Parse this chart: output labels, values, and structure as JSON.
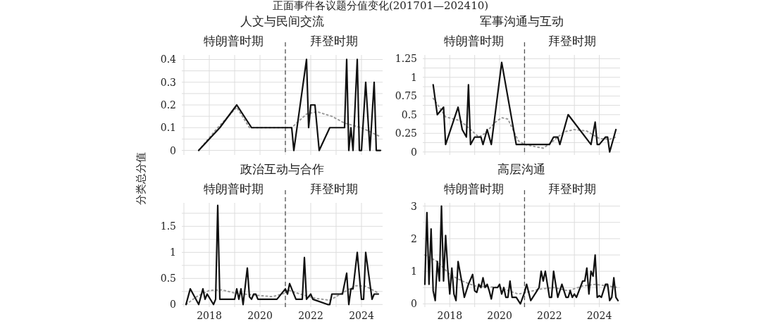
{
  "chart_data": [
    {
      "type": "line",
      "title": "人文与民间交流",
      "ylabel": "分类总分值",
      "annotations": [
        "特朗普时期",
        "拜登时期",
        "正面事件各议题分值变化(201701—202410)"
      ],
      "xlim": [
        "2016-12",
        "2024-11"
      ],
      "ylim": [
        -0.02,
        0.42
      ],
      "xticks": [
        {
          "value": "2017",
          "label": null
        },
        "2018",
        {
          "value": "2019",
          "label": null
        },
        "2020",
        {
          "value": "2021",
          "label": null
        },
        "2022",
        {
          "value": "2023",
          "label": null
        },
        "2024"
      ],
      "yticks": [
        0,
        {
          "value": 0.05,
          "label": null
        },
        0.1,
        {
          "value": 0.15,
          "label": null
        },
        0.2,
        {
          "value": 0.25,
          "label": null
        },
        0.3,
        {
          "value": 0.35,
          "label": null
        },
        0.4
      ],
      "tick_labels": "y",
      "grid": true,
      "ref_lines": [
        {
          "axis": "x",
          "value": "2021-01",
          "color": "#555555",
          "line_style": "dashed"
        }
      ],
      "series": [
        {
          "color": "#111111",
          "line_style": "solid",
          "x": [
            "2017-08",
            "2018-06",
            "2019-02",
            "2019-09",
            "2021-04",
            "2021-05",
            "2021-11",
            "2021-12",
            "2022-01",
            "2022-03",
            "2022-05",
            "2022-10",
            "2023-05",
            "2023-06",
            "2023-07",
            "2023-08",
            "2023-09",
            "2023-11",
            "2023-12",
            "2024-01",
            "2024-03",
            "2024-05",
            "2024-07",
            "2024-08",
            "2024-10"
          ],
          "values": [
            0,
            0.1,
            0.2,
            0.1,
            0.1,
            0,
            0.4,
            0.1,
            0.2,
            0.2,
            0,
            0.1,
            0.1,
            0.4,
            0,
            0.1,
            0,
            0.4,
            0,
            0,
            0.3,
            0,
            0.3,
            0,
            0
          ]
        },
        {
          "color": "#999999",
          "line_style": "dotted",
          "x": [
            "2017-08",
            "2018-05",
            "2019-02",
            "2019-08",
            "2021-01",
            "2021-04",
            "2021-11",
            "2022-04",
            "2022-11",
            "2023-05",
            "2024-01",
            "2024-10"
          ],
          "values": [
            0,
            0.1,
            0.19,
            0.1,
            0.1,
            0.1,
            0.16,
            0.17,
            0.15,
            0.12,
            0.1,
            0.06
          ]
        }
      ]
    },
    {
      "type": "line",
      "title": "军事沟通与互动",
      "annotations": [
        "特朗普时期",
        "拜登时期"
      ],
      "xlim": [
        "2016-12",
        "2024-11"
      ],
      "ylim": [
        -0.04,
        1.3
      ],
      "xticks": [
        {
          "value": "2017",
          "label": null
        },
        "2018",
        {
          "value": "2019",
          "label": null
        },
        "2020",
        {
          "value": "2021",
          "label": null
        },
        "2022",
        {
          "value": "2023",
          "label": null
        },
        "2024"
      ],
      "yticks": [
        0,
        {
          "value": 0.125,
          "label": null
        },
        0.25,
        {
          "value": 0.375,
          "label": null
        },
        0.5,
        {
          "value": 0.625,
          "label": null
        },
        0.75,
        {
          "value": 0.875,
          "label": null
        },
        1,
        {
          "value": 1.125,
          "label": null
        },
        1.25
      ],
      "tick_labels": "y",
      "grid": true,
      "ref_lines": [
        {
          "axis": "x",
          "value": "2021-01",
          "color": "#555555",
          "line_style": "dashed"
        }
      ],
      "series": [
        {
          "color": "#111111",
          "line_style": "solid",
          "x": [
            "2017-05",
            "2017-07",
            "2017-10",
            "2017-11",
            "2018-05",
            "2018-07",
            "2018-09",
            "2018-10",
            "2018-11",
            "2019-01",
            "2019-04",
            "2019-05",
            "2019-07",
            "2019-09",
            "2020-02",
            "2020-09",
            "2022-01",
            "2022-03",
            "2022-05",
            "2022-06",
            "2022-10",
            "2023-09",
            "2023-11",
            "2023-12",
            "2024-01",
            "2024-04",
            "2024-05",
            "2024-06",
            "2024-09"
          ],
          "values": [
            0.9,
            0.5,
            0.6,
            0.1,
            0.6,
            0.3,
            0.2,
            0.9,
            0.1,
            0.2,
            0.2,
            0.1,
            0.3,
            0.1,
            1.2,
            0.1,
            0.1,
            0.2,
            0.2,
            0.1,
            0.5,
            0.1,
            0.4,
            0.1,
            0.1,
            0.2,
            0.2,
            0,
            0.3
          ]
        },
        {
          "color": "#999999",
          "line_style": "dotted",
          "x": [
            "2017-05",
            "2017-08",
            "2017-11",
            "2018-06",
            "2018-11",
            "2019-03",
            "2019-06",
            "2019-11",
            "2020-02",
            "2020-05",
            "2020-10",
            "2021-01",
            "2021-10",
            "2022-03",
            "2022-08",
            "2023-01",
            "2023-07",
            "2024-01",
            "2024-06",
            "2024-09"
          ],
          "values": [
            0.72,
            0.6,
            0.47,
            0.42,
            0.3,
            0.2,
            0.25,
            0.4,
            0.46,
            0.44,
            0.15,
            0.1,
            0.05,
            0.15,
            0.27,
            0.3,
            0.28,
            0.18,
            0.17,
            0.2
          ]
        }
      ]
    },
    {
      "type": "line",
      "title": "政治互动与合作",
      "annotations": [
        "特朗普时期",
        "拜登时期"
      ],
      "xlim": [
        "2016-12",
        "2024-11"
      ],
      "ylim": [
        -0.05,
        1.95
      ],
      "xticks": [
        {
          "value": "2017",
          "label": null
        },
        "2018",
        {
          "value": "2019",
          "label": null
        },
        "2020",
        {
          "value": "2021",
          "label": null
        },
        "2022",
        {
          "value": "2023",
          "label": null
        },
        "2024"
      ],
      "yticks": [
        0,
        {
          "value": 0.25,
          "label": null
        },
        0.5,
        {
          "value": 0.75,
          "label": null
        },
        1,
        {
          "value": 1.25,
          "label": null
        },
        1.5,
        {
          "value": 1.75,
          "label": null
        }
      ],
      "grid": true,
      "ref_lines": [
        {
          "axis": "x",
          "value": "2021-01",
          "color": "#555555",
          "line_style": "dashed"
        }
      ],
      "series": [
        {
          "color": "#111111",
          "line_style": "solid",
          "x": [
            "2017-02",
            "2017-04",
            "2017-08",
            "2017-10",
            "2017-11",
            "2017-12",
            "2018-03",
            "2018-04",
            "2018-05",
            "2018-06",
            "2019-01",
            "2019-02",
            "2019-03",
            "2019-04",
            "2019-05",
            "2019-07",
            "2019-08",
            "2019-09",
            "2019-10",
            "2019-11",
            "2019-12",
            "2020-09",
            "2021-01",
            "2021-02",
            "2021-03",
            "2021-06",
            "2021-09",
            "2021-10",
            "2021-11",
            "2022-01",
            "2022-02",
            "2022-09",
            "2022-10",
            "2022-11",
            "2023-04",
            "2023-06",
            "2023-07",
            "2023-08",
            "2023-09",
            "2023-11",
            "2024-01",
            "2024-02",
            "2024-03",
            "2024-06",
            "2024-07",
            "2024-09"
          ],
          "values": [
            0,
            0.3,
            0,
            0.3,
            0.1,
            0.2,
            0,
            0.1,
            1.9,
            0.1,
            0.1,
            0.3,
            0.1,
            0.3,
            0,
            0.7,
            0.15,
            0.1,
            0.2,
            0.2,
            0.1,
            0.1,
            0.3,
            0.2,
            0.4,
            0.1,
            0.1,
            0.9,
            0.1,
            0.2,
            0.1,
            0,
            0,
            0.2,
            0.2,
            0.6,
            0,
            0.3,
            0.3,
            1,
            0.1,
            0.1,
            1,
            0.1,
            0.2,
            0.2
          ]
        },
        {
          "color": "#999999",
          "line_style": "dotted",
          "x": [
            "2017-02",
            "2017-07",
            "2018-01",
            "2018-07",
            "2019-01",
            "2019-10",
            "2020-07",
            "2021-01",
            "2021-02",
            "2021-08",
            "2022-03",
            "2022-10",
            "2023-04",
            "2023-10",
            "2024-03",
            "2024-09"
          ],
          "values": [
            0,
            0.15,
            0.27,
            0.28,
            0.22,
            0.18,
            0.15,
            0.22,
            0.28,
            0.2,
            0.12,
            0.08,
            0.22,
            0.36,
            0.35,
            0.22
          ]
        }
      ]
    },
    {
      "type": "line",
      "title": "高层沟通",
      "annotations": [
        "特朗普时期",
        "拜登时期"
      ],
      "xlim": [
        "2016-12",
        "2024-11"
      ],
      "ylim": [
        -0.1,
        3.1
      ],
      "xticks": [
        {
          "value": "2017",
          "label": null
        },
        "2018",
        {
          "value": "2019",
          "label": null
        },
        "2020",
        {
          "value": "2021",
          "label": null
        },
        "2022",
        {
          "value": "2023",
          "label": null
        },
        "2024"
      ],
      "yticks": [
        0,
        {
          "value": 0.5,
          "label": null
        },
        1,
        {
          "value": 1.5,
          "label": null
        },
        2,
        {
          "value": 2.5,
          "label": null
        },
        3
      ],
      "grid": true,
      "ref_lines": [
        {
          "axis": "x",
          "value": "2021-01",
          "color": "#555555",
          "line_style": "dashed"
        }
      ],
      "series": [
        {
          "color": "#111111",
          "line_style": "solid",
          "x": [
            "2017-01",
            "2017-02",
            "2017-03",
            "2017-04",
            "2017-05",
            "2017-06",
            "2017-07",
            "2017-08",
            "2017-09",
            "2017-10",
            "2017-11",
            "2017-12",
            "2018-01",
            "2018-02",
            "2018-03",
            "2018-04",
            "2018-05",
            "2018-07",
            "2018-08",
            "2018-10",
            "2018-12",
            "2019-01",
            "2019-02",
            "2019-03",
            "2019-04",
            "2019-05",
            "2019-06",
            "2019-07",
            "2019-08",
            "2019-09",
            "2019-10",
            "2019-12",
            "2020-01",
            "2020-02",
            "2020-03",
            "2020-04",
            "2020-05",
            "2020-06",
            "2020-07",
            "2020-09",
            "2020-11",
            "2021-01",
            "2021-02",
            "2021-04",
            "2021-08",
            "2021-09",
            "2021-10",
            "2021-11",
            "2022-01",
            "2022-02",
            "2022-03",
            "2022-05",
            "2022-07",
            "2022-09",
            "2022-10",
            "2022-11",
            "2022-12",
            "2023-01",
            "2023-02",
            "2023-05",
            "2023-06",
            "2023-07",
            "2023-08",
            "2023-09",
            "2023-10",
            "2023-11",
            "2023-12",
            "2024-01",
            "2024-02",
            "2024-04",
            "2024-05",
            "2024-06",
            "2024-07",
            "2024-08",
            "2024-09",
            "2024-10"
          ],
          "values": [
            0.6,
            2.8,
            0.6,
            2.3,
            0.4,
            0.1,
            1.3,
            0.7,
            3,
            0.7,
            2.1,
            1.1,
            0.3,
            1.1,
            0.3,
            0.1,
            1.3,
            0.6,
            0.2,
            0.6,
            0.9,
            0.4,
            0.35,
            0.6,
            0.5,
            0.8,
            0.5,
            0.6,
            0.4,
            0.15,
            0.5,
            0.5,
            0.6,
            0.3,
            0.5,
            0.2,
            0.2,
            0.7,
            0.2,
            0.2,
            0,
            0.35,
            0.6,
            0.1,
            0.5,
            1,
            0.7,
            1,
            0.2,
            0.2,
            1,
            0.2,
            0.6,
            0.2,
            0.2,
            0.4,
            0.2,
            0.3,
            0.2,
            0.7,
            0.7,
            1.1,
            0.3,
            1,
            0.85,
            1.5,
            0.2,
            0.25,
            0.2,
            0.6,
            0.6,
            0.1,
            0.2,
            0.8,
            0.2,
            0.1
          ]
        },
        {
          "color": "#999999",
          "line_style": "dotted",
          "x": [
            "2017-01",
            "2017-07",
            "2018-01",
            "2018-07",
            "2019-01",
            "2020-01",
            "2020-10",
            "2021-02",
            "2021-08",
            "2022-03",
            "2022-10",
            "2023-05",
            "2023-11",
            "2024-05",
            "2024-10"
          ],
          "values": [
            1.5,
            1.3,
            0.9,
            0.7,
            0.55,
            0.5,
            0.3,
            0.35,
            0.45,
            0.5,
            0.4,
            0.55,
            0.6,
            0.55,
            0.5
          ]
        }
      ]
    }
  ]
}
